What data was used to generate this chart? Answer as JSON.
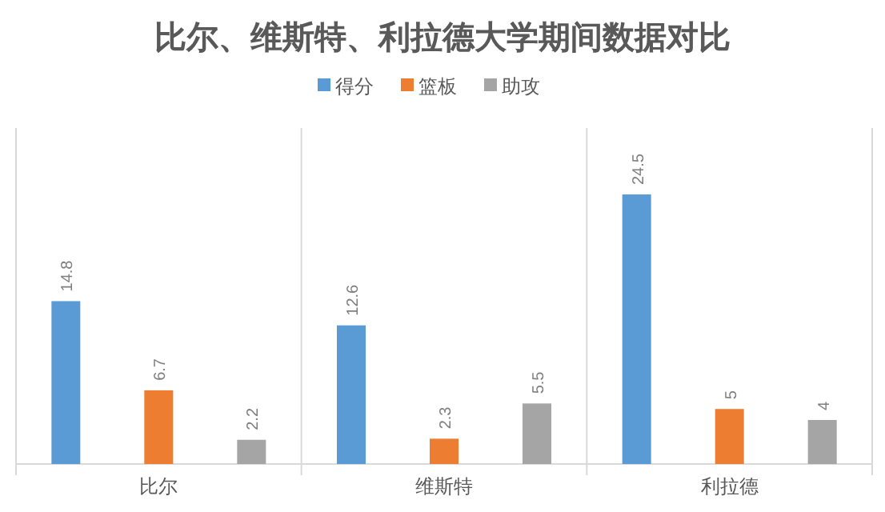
{
  "chart_data": {
    "type": "bar",
    "title": "比尔、维斯特、利拉德大学期间数据对比",
    "categories": [
      "比尔",
      "维斯特",
      "利拉德"
    ],
    "series": [
      {
        "name": "得分",
        "color": "#5b9bd5",
        "values": [
          14.8,
          12.6,
          24.5
        ]
      },
      {
        "name": "篮板",
        "color": "#ed7d31",
        "values": [
          6.7,
          2.3,
          5
        ]
      },
      {
        "name": "助攻",
        "color": "#a5a5a5",
        "values": [
          2.2,
          5.5,
          4
        ]
      }
    ],
    "data_labels": true,
    "legend": "top"
  }
}
